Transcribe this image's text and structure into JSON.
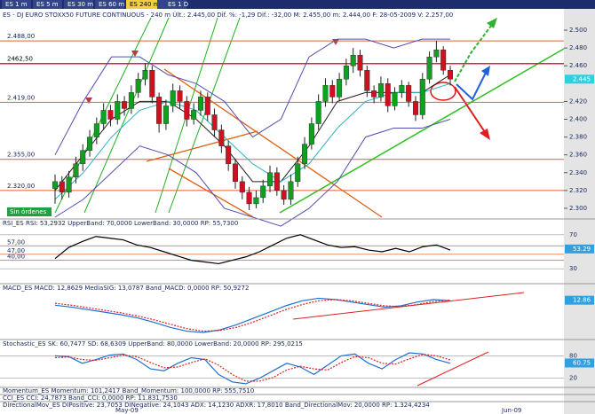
{
  "tabs": [
    "ES 1 m",
    "ES 5 m",
    "ES 30 m",
    "ES 60 m",
    "ES 240 m",
    "ES 1 D"
  ],
  "header": "ES - DJ EURO STOXX50 FUTURE CONTINUOUS - 240 m  Últ.: 2.445,00  Dif. %: -1,29  Dif.: -32,00  M: 2.455,00  m: 2.444,00  F: 28-05-2009  V: 2.257,00",
  "status": "Sin órdenes",
  "price": {
    "ylim": [
      2.29,
      2.51
    ],
    "yticks": [
      {
        "value": 2.5,
        "label": "2.500"
      },
      {
        "value": 2.48,
        "label": "2.480"
      },
      {
        "value": 2.46,
        "label": "2.460"
      },
      {
        "value": 2.42,
        "label": "2.420"
      },
      {
        "value": 2.4,
        "label": "2.400"
      },
      {
        "value": 2.38,
        "label": "2.380"
      },
      {
        "value": 2.36,
        "label": "2.360"
      },
      {
        "value": 2.34,
        "label": "2.340"
      },
      {
        "value": 2.32,
        "label": "2.320"
      },
      {
        "value": 2.3,
        "label": "2.300"
      }
    ],
    "current": {
      "value": 2.445,
      "label": "2.445"
    },
    "levels": [
      {
        "value": 2.488,
        "label": "2.488,00",
        "color": "#e06030"
      },
      {
        "value": 2.4625,
        "label": "2462,50",
        "color": "#e02040"
      },
      {
        "value": 2.419,
        "label": "2.419,00",
        "color": "#e06030"
      },
      {
        "value": 2.355,
        "label": "2.355,00",
        "color": "#e06030"
      },
      {
        "value": 2.32,
        "label": "2.320,00",
        "color": "#e06030"
      }
    ],
    "up_color": "#10a020",
    "down_color": "#d01020",
    "candles": [
      [
        2.322,
        2.338,
        2.305,
        2.33
      ],
      [
        2.33,
        2.336,
        2.31,
        2.318
      ],
      [
        2.318,
        2.342,
        2.312,
        2.335
      ],
      [
        2.335,
        2.358,
        2.328,
        2.35
      ],
      [
        2.35,
        2.372,
        2.342,
        2.365
      ],
      [
        2.365,
        2.388,
        2.358,
        2.38
      ],
      [
        2.38,
        2.402,
        2.372,
        2.395
      ],
      [
        2.395,
        2.418,
        2.388,
        2.41
      ],
      [
        2.41,
        2.416,
        2.392,
        2.4
      ],
      [
        2.4,
        2.428,
        2.394,
        2.42
      ],
      [
        2.42,
        2.426,
        2.404,
        2.412
      ],
      [
        2.412,
        2.438,
        2.406,
        2.43
      ],
      [
        2.43,
        2.452,
        2.424,
        2.445
      ],
      [
        2.445,
        2.463,
        2.438,
        2.455
      ],
      [
        2.455,
        2.46,
        2.418,
        2.425
      ],
      [
        2.425,
        2.43,
        2.385,
        2.395
      ],
      [
        2.395,
        2.422,
        2.388,
        2.415
      ],
      [
        2.415,
        2.44,
        2.408,
        2.432
      ],
      [
        2.432,
        2.438,
        2.412,
        2.42
      ],
      [
        2.42,
        2.426,
        2.392,
        2.4
      ],
      [
        2.4,
        2.418,
        2.394,
        2.41
      ],
      [
        2.41,
        2.432,
        2.404,
        2.425
      ],
      [
        2.425,
        2.43,
        2.398,
        2.405
      ],
      [
        2.405,
        2.412,
        2.38,
        2.388
      ],
      [
        2.388,
        2.394,
        2.362,
        2.37
      ],
      [
        2.37,
        2.376,
        2.342,
        2.35
      ],
      [
        2.35,
        2.356,
        2.322,
        2.33
      ],
      [
        2.33,
        2.336,
        2.31,
        2.318
      ],
      [
        2.318,
        2.324,
        2.298,
        2.305
      ],
      [
        2.305,
        2.32,
        2.3,
        2.312
      ],
      [
        2.312,
        2.332,
        2.306,
        2.325
      ],
      [
        2.325,
        2.348,
        2.318,
        2.34
      ],
      [
        2.34,
        2.346,
        2.314,
        2.32
      ],
      [
        2.32,
        2.326,
        2.304,
        2.31
      ],
      [
        2.31,
        2.338,
        2.304,
        2.33
      ],
      [
        2.33,
        2.358,
        2.324,
        2.35
      ],
      [
        2.35,
        2.38,
        2.344,
        2.372
      ],
      [
        2.372,
        2.402,
        2.366,
        2.395
      ],
      [
        2.395,
        2.428,
        2.388,
        2.42
      ],
      [
        2.42,
        2.446,
        2.414,
        2.438
      ],
      [
        2.438,
        2.444,
        2.418,
        2.425
      ],
      [
        2.425,
        2.452,
        2.42,
        2.445
      ],
      [
        2.445,
        2.468,
        2.438,
        2.46
      ],
      [
        2.46,
        2.48,
        2.452,
        2.472
      ],
      [
        2.472,
        2.478,
        2.448,
        2.455
      ],
      [
        2.455,
        2.46,
        2.425,
        2.432
      ],
      [
        2.432,
        2.438,
        2.418,
        2.425
      ],
      [
        2.425,
        2.448,
        2.42,
        2.44
      ],
      [
        2.44,
        2.446,
        2.408,
        2.415
      ],
      [
        2.415,
        2.436,
        2.41,
        2.43
      ],
      [
        2.43,
        2.444,
        2.424,
        2.438
      ],
      [
        2.438,
        2.442,
        2.414,
        2.42
      ],
      [
        2.42,
        2.426,
        2.398,
        2.405
      ],
      [
        2.405,
        2.452,
        2.4,
        2.445
      ],
      [
        2.445,
        2.476,
        2.44,
        2.47
      ],
      [
        2.47,
        2.488,
        2.464,
        2.478
      ],
      [
        2.478,
        2.482,
        2.45,
        2.455
      ],
      [
        2.455,
        2.46,
        2.438,
        2.445
      ]
    ],
    "overlays": [
      {
        "color": "#5050b0",
        "values": [
          2.36,
          2.42,
          2.47,
          2.47,
          2.45,
          2.44,
          2.42,
          2.38,
          2.4,
          2.47,
          2.49,
          2.49,
          2.48,
          2.49,
          2.49
        ]
      },
      {
        "color": "#5050b0",
        "values": [
          2.29,
          2.31,
          2.34,
          2.37,
          2.36,
          2.34,
          2.3,
          2.29,
          2.28,
          2.3,
          2.33,
          2.38,
          2.39,
          2.39,
          2.4
        ]
      },
      {
        "color": "#202020",
        "values": [
          2.32,
          2.36,
          2.4,
          2.42,
          2.42,
          2.4,
          2.37,
          2.33,
          2.33,
          2.37,
          2.42,
          2.43,
          2.43,
          2.43,
          2.45
        ]
      },
      {
        "color": "#30b0c0",
        "values": [
          2.31,
          2.34,
          2.38,
          2.41,
          2.42,
          2.41,
          2.38,
          2.35,
          2.33,
          2.35,
          2.39,
          2.42,
          2.43,
          2.43,
          2.44
        ]
      }
    ]
  },
  "panes": [
    {
      "label": "RSI_ES RSI: 53,2932 UpperBand: 70,0000 LowerBand: 30,0000 RP: 55,7300",
      "ylim": [
        25,
        75
      ],
      "yticks": [
        70,
        30
      ],
      "current": {
        "value": 53.29,
        "label": "53.29"
      },
      "levels": [
        {
          "value": 57,
          "label": "57,00"
        },
        {
          "value": 47,
          "label": "47,00"
        },
        {
          "value": 40,
          "label": "40,00"
        }
      ],
      "series": [
        {
          "color": "#000000",
          "dash": false,
          "values": [
            42,
            55,
            62,
            68,
            66,
            64,
            58,
            55,
            50,
            45,
            40,
            38,
            36,
            40,
            44,
            50,
            58,
            66,
            70,
            64,
            58,
            55,
            56,
            52,
            50,
            54,
            50,
            56,
            58,
            52
          ]
        }
      ]
    },
    {
      "label": "MACD_ES MACD: 12,8629 MediaSIG: 13,0787 Band_MACD: 0,0000 RP: 50,9272",
      "ylim": [
        -45,
        25
      ],
      "yticks": [],
      "current": {
        "value": 12.86,
        "label": "12.86"
      },
      "levels": [],
      "series": [
        {
          "color": "#2070d0",
          "dash": false,
          "values": [
            5,
            2,
            -2,
            -6,
            -10,
            -15,
            -22,
            -30,
            -36,
            -38,
            -34,
            -26,
            -16,
            -6,
            4,
            12,
            16,
            14,
            10,
            6,
            2,
            4,
            10,
            14,
            12
          ]
        },
        {
          "color": "#e02020",
          "dash": true,
          "values": [
            8,
            5,
            1,
            -3,
            -7,
            -12,
            -18,
            -25,
            -32,
            -36,
            -35,
            -30,
            -22,
            -12,
            -2,
            6,
            12,
            14,
            12,
            8,
            4,
            3,
            6,
            11,
            13
          ]
        }
      ]
    },
    {
      "label": "Stochastic_ES SK: 60,7477 SD: 68,6309 UpperBand: 80,0000 LowerBand: 20,0000 RP: 295,0215",
      "ylim": [
        0,
        100
      ],
      "yticks": [
        80,
        20
      ],
      "current": {
        "value": 60.75,
        "label": "60.75"
      },
      "levels": [],
      "series": [
        {
          "color": "#2070d0",
          "dash": false,
          "values": [
            80,
            78,
            60,
            70,
            82,
            85,
            70,
            45,
            40,
            60,
            75,
            70,
            30,
            10,
            5,
            20,
            40,
            60,
            50,
            30,
            55,
            80,
            85,
            60,
            45,
            70,
            88,
            85,
            70,
            60
          ]
        },
        {
          "color": "#e02020",
          "dash": true,
          "values": [
            75,
            77,
            70,
            68,
            75,
            82,
            78,
            62,
            48,
            50,
            62,
            72,
            55,
            30,
            12,
            12,
            22,
            42,
            52,
            45,
            42,
            62,
            78,
            75,
            60,
            58,
            72,
            84,
            80,
            69
          ]
        }
      ]
    }
  ],
  "footer_labels": [
    "Momentum_ES Momentum: 101,2417 Band_Momentum: 100,0000 RP: 555,7510",
    "CCI_ES CCI: 24,7873 Band_CCI: 0,0000 RP: 11.831,7530",
    "DirectionalMov_ES DIPositive: 23,7053 DINegative: 24,1043 ADX: 14,1230 ADXR: 17,8010 Band_DirectionalMov: 20,0000 RP: 1.324,4234"
  ],
  "dates": [
    "May-09",
    "Jun-09"
  ]
}
